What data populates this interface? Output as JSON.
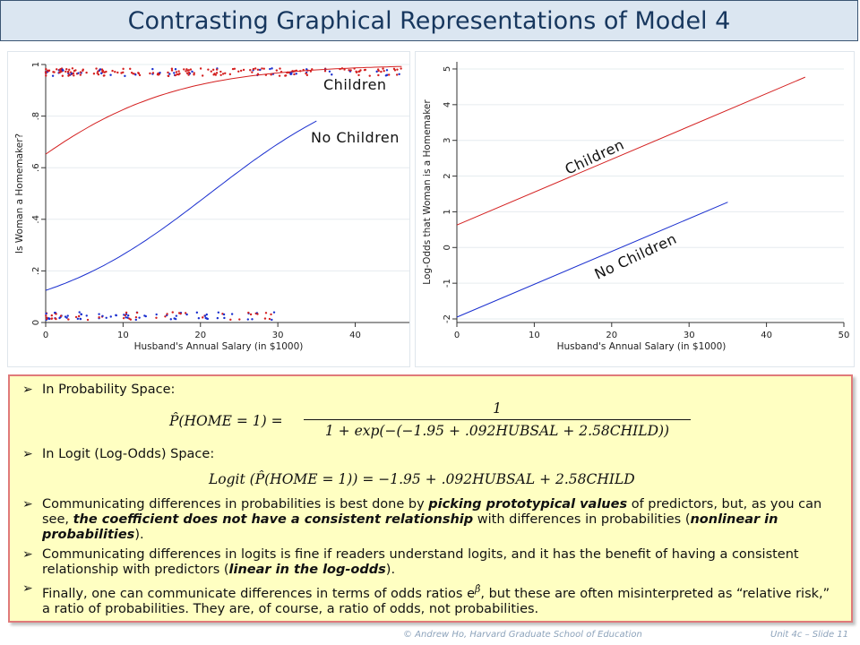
{
  "slide": {
    "title": "Contrasting Graphical Representations of Model 4",
    "footer_left": "© Andrew Ho, Harvard Graduate School of Education",
    "footer_right": "Unit 4c – Slide 11"
  },
  "chart_data": [
    {
      "type": "scatter",
      "xlabel": "Husband's Annual Salary (in $1000)",
      "ylabel": "Is Woman a Homemaker?",
      "xlim": [
        0,
        47
      ],
      "ylim": [
        0,
        1
      ],
      "x_ticks": [
        0,
        10,
        20,
        30,
        40
      ],
      "y_ticks": [
        0,
        0.2,
        0.4,
        0.6,
        0.8,
        1
      ],
      "y_tick_labels": [
        "0",
        ".2",
        ".4",
        ".6",
        ".8",
        "1"
      ],
      "grid": "horizontal",
      "colors": {
        "children": "#d42020",
        "no_children": "#1a2fcf"
      },
      "series": [
        {
          "name": "Children",
          "kind": "logistic",
          "intercept": 0.63,
          "slope": 0.092,
          "x_range": [
            0,
            46
          ]
        },
        {
          "name": "No Children",
          "kind": "logistic",
          "intercept": -1.95,
          "slope": 0.092,
          "x_range": [
            0,
            35
          ]
        }
      ],
      "annotations": [
        "Children",
        "No Children"
      ]
    },
    {
      "type": "line",
      "xlabel": "Husband's Annual Salary (in $1000)",
      "ylabel": "Log-Odds that Woman is a Homemaker",
      "xlim": [
        0,
        50
      ],
      "ylim": [
        -2.1,
        5.2
      ],
      "x_ticks": [
        0,
        10,
        20,
        30,
        40,
        50
      ],
      "y_ticks": [
        -2,
        -1,
        0,
        1,
        2,
        3,
        4,
        5
      ],
      "grid": "horizontal",
      "series": [
        {
          "name": "Children",
          "x": [
            0,
            45
          ],
          "y": [
            0.63,
            4.77
          ]
        },
        {
          "name": "No Children",
          "x": [
            0,
            35
          ],
          "y": [
            -1.95,
            1.27
          ]
        }
      ],
      "annotations": [
        "Children",
        "No Children"
      ]
    }
  ],
  "bullets": {
    "b1": "In Probability Space:",
    "eq1_lhs": "P̂(HOME = 1) =",
    "eq1_num": "1",
    "eq1_den": "1 + exp(−(−1.95 + .092HUBSAL + 2.58CHILD))",
    "b2": "In Logit (Log-Odds) Space:",
    "eq2": "Logit (P̂(HOME = 1)) = −1.95 + .092HUBSAL + 2.58CHILD",
    "b3_a": "Communicating differences in probabilities is best done by ",
    "b3_b": "picking prototypical values",
    "b3_c": " of predictors, but, as you can see, ",
    "b3_d": "the coefficient does not have a consistent relationship",
    "b3_e": " with differences in probabilities (",
    "b3_f": "nonlinear in probabilities",
    "b3_g": ").",
    "b4_a": "Communicating differences in logits is fine if readers understand logits, and it has the benefit of having a consistent relationship with predictors (",
    "b4_b": "linear in the log-odds",
    "b4_c": ").",
    "b5_a": "Finally, one can communicate differences in terms of odds ratios e",
    "b5_sup": "β̂",
    "b5_b": ", but these are often misinterpreted as “relative risk,” a ratio of probabilities.  They are, of course, a ratio of odds, not probabilities."
  }
}
